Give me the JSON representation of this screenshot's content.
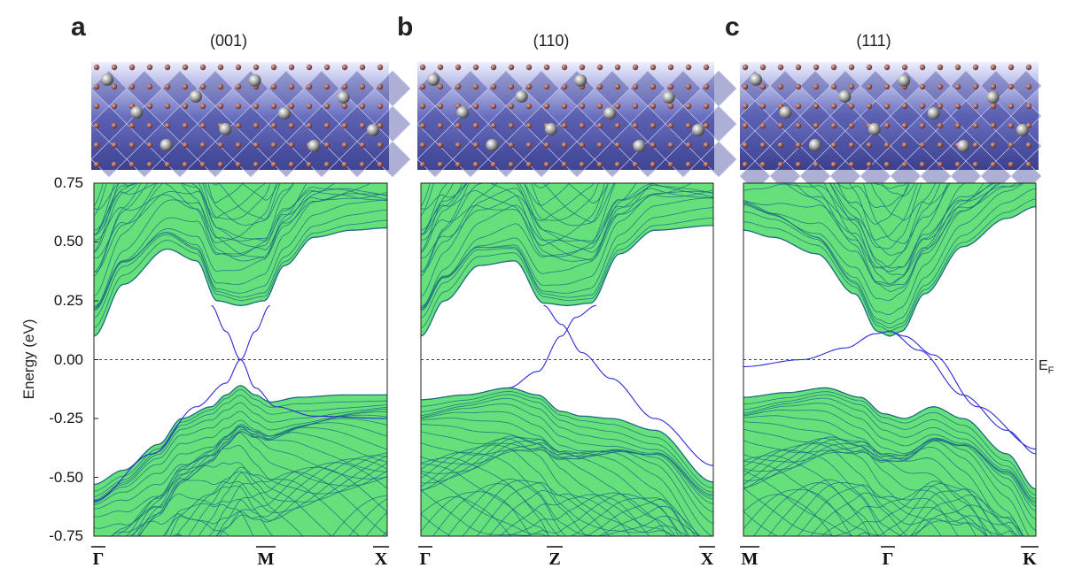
{
  "colors": {
    "bulk_fill": "#66e07a",
    "bulk_line": "#1a6a84",
    "surface_band": "#2a2ad8",
    "slab_bg": "#4a4ea0",
    "atom_small": "#7a3a30",
    "atom_large": "#9a9a9a",
    "frame": "#222222",
    "fermi_line": "#444444"
  },
  "y_axis": {
    "label": "Energy (eV)",
    "ticks": [
      "0.75",
      "0.50",
      "0.25",
      "0.00",
      "-0.25",
      "-0.50",
      "-0.75"
    ],
    "fermi_label": "E",
    "fermi_sub": "F"
  },
  "chart_data": [
    {
      "type": "line",
      "panel": "a",
      "surface": "(001)",
      "kpoints": [
        "Γ",
        "M",
        "X"
      ],
      "ylabel": "Energy (eV)",
      "ylim": [
        -0.75,
        0.75
      ],
      "grid": false,
      "fermi_level": 0.0,
      "bulk_conduction_min": [
        [
          0.0,
          0.1
        ],
        [
          0.1,
          0.32
        ],
        [
          0.25,
          0.47
        ],
        [
          0.35,
          0.42
        ],
        [
          0.42,
          0.25
        ],
        [
          0.5,
          0.23
        ],
        [
          0.58,
          0.25
        ],
        [
          0.65,
          0.4
        ],
        [
          0.75,
          0.52
        ],
        [
          0.88,
          0.55
        ],
        [
          1.0,
          0.56
        ]
      ],
      "bulk_valence_max": [
        [
          0.0,
          -0.53
        ],
        [
          0.1,
          -0.47
        ],
        [
          0.22,
          -0.36
        ],
        [
          0.3,
          -0.25
        ],
        [
          0.4,
          -0.2
        ],
        [
          0.45,
          -0.15
        ],
        [
          0.5,
          -0.11
        ],
        [
          0.55,
          -0.15
        ],
        [
          0.6,
          -0.18
        ],
        [
          0.7,
          -0.16
        ],
        [
          0.85,
          -0.15
        ],
        [
          1.0,
          -0.15
        ]
      ],
      "surface_bands": [
        [
          [
            0.4,
            0.23
          ],
          [
            0.45,
            0.12
          ],
          [
            0.5,
            0.0
          ],
          [
            0.55,
            -0.12
          ],
          [
            0.62,
            -0.2
          ],
          [
            0.75,
            -0.24
          ],
          [
            1.0,
            -0.25
          ]
        ],
        [
          [
            0.0,
            -0.6
          ],
          [
            0.2,
            -0.4
          ],
          [
            0.35,
            -0.2
          ],
          [
            0.45,
            -0.1
          ],
          [
            0.5,
            0.0
          ],
          [
            0.55,
            0.12
          ],
          [
            0.6,
            0.23
          ]
        ]
      ]
    },
    {
      "type": "line",
      "panel": "b",
      "surface": "(110)",
      "kpoints": [
        "Γ",
        "Z",
        "X"
      ],
      "ylabel": "",
      "ylim": [
        -0.75,
        0.75
      ],
      "grid": false,
      "fermi_level": 0.0,
      "bulk_conduction_min": [
        [
          0.0,
          0.1
        ],
        [
          0.08,
          0.25
        ],
        [
          0.2,
          0.4
        ],
        [
          0.32,
          0.42
        ],
        [
          0.42,
          0.24
        ],
        [
          0.5,
          0.23
        ],
        [
          0.58,
          0.24
        ],
        [
          0.68,
          0.45
        ],
        [
          0.8,
          0.55
        ],
        [
          1.0,
          0.57
        ]
      ],
      "bulk_valence_max": [
        [
          0.0,
          -0.17
        ],
        [
          0.15,
          -0.15
        ],
        [
          0.3,
          -0.12
        ],
        [
          0.4,
          -0.15
        ],
        [
          0.48,
          -0.22
        ],
        [
          0.55,
          -0.24
        ],
        [
          0.65,
          -0.25
        ],
        [
          0.8,
          -0.3
        ],
        [
          1.0,
          -0.52
        ]
      ],
      "surface_bands": [
        [
          [
            0.3,
            -0.12
          ],
          [
            0.4,
            -0.05
          ],
          [
            0.48,
            0.1
          ],
          [
            0.53,
            0.18
          ],
          [
            0.6,
            0.23
          ]
        ],
        [
          [
            0.42,
            0.23
          ],
          [
            0.48,
            0.15
          ],
          [
            0.55,
            0.03
          ],
          [
            0.65,
            -0.08
          ],
          [
            0.8,
            -0.25
          ],
          [
            1.0,
            -0.45
          ]
        ]
      ]
    },
    {
      "type": "line",
      "panel": "c",
      "surface": "(111)",
      "kpoints": [
        "M",
        "Γ",
        "K"
      ],
      "ylabel": "",
      "ylim": [
        -0.75,
        0.75
      ],
      "grid": false,
      "fermi_level": 0.0,
      "bulk_conduction_min": [
        [
          0.0,
          0.55
        ],
        [
          0.1,
          0.52
        ],
        [
          0.25,
          0.45
        ],
        [
          0.38,
          0.28
        ],
        [
          0.46,
          0.12
        ],
        [
          0.5,
          0.1
        ],
        [
          0.54,
          0.12
        ],
        [
          0.62,
          0.28
        ],
        [
          0.75,
          0.48
        ],
        [
          0.9,
          0.6
        ],
        [
          1.0,
          0.65
        ]
      ],
      "bulk_valence_max": [
        [
          0.0,
          -0.16
        ],
        [
          0.15,
          -0.14
        ],
        [
          0.28,
          -0.12
        ],
        [
          0.4,
          -0.16
        ],
        [
          0.48,
          -0.23
        ],
        [
          0.55,
          -0.25
        ],
        [
          0.65,
          -0.2
        ],
        [
          0.75,
          -0.25
        ],
        [
          0.9,
          -0.4
        ],
        [
          1.0,
          -0.55
        ]
      ],
      "surface_bands": [
        [
          [
            0.0,
            -0.03
          ],
          [
            0.2,
            0.0
          ],
          [
            0.35,
            0.05
          ],
          [
            0.45,
            0.11
          ],
          [
            0.5,
            0.12
          ],
          [
            0.55,
            0.1
          ],
          [
            0.65,
            0.02
          ],
          [
            0.8,
            -0.2
          ],
          [
            1.0,
            -0.38
          ]
        ],
        [
          [
            0.5,
            0.12
          ],
          [
            0.6,
            0.04
          ],
          [
            0.75,
            -0.15
          ],
          [
            0.9,
            -0.3
          ],
          [
            1.0,
            -0.4
          ]
        ]
      ]
    }
  ]
}
